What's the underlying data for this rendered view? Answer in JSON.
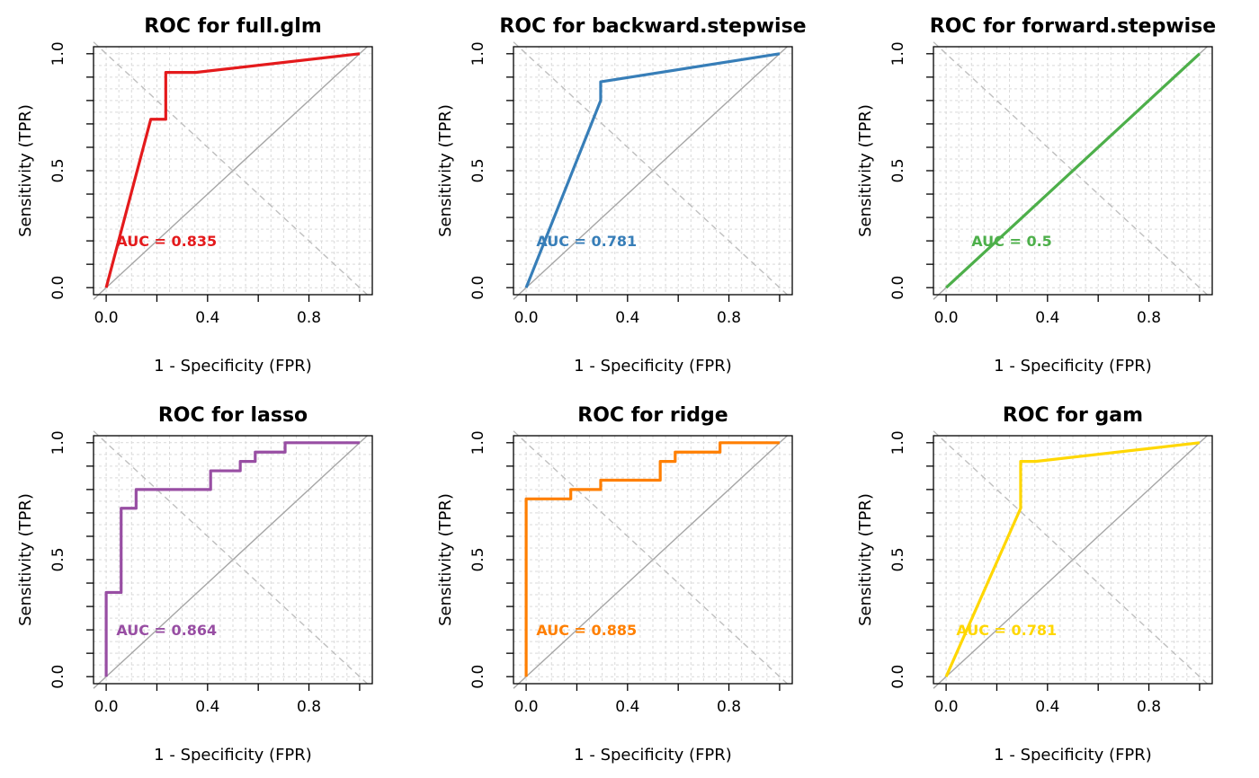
{
  "chart_data": [
    {
      "type": "line",
      "title": "ROC for full.glm",
      "xlabel": "1 - Specificity (FPR)",
      "ylabel": "Sensitivity (TPR)",
      "xlim": [
        -0.05,
        1.05
      ],
      "ylim": [
        -0.03,
        1.03
      ],
      "x_ticks": [
        "0.0",
        "0.4",
        "0.8"
      ],
      "y_ticks": [
        "0.0",
        "0.5",
        "1.0"
      ],
      "grid": true,
      "color": "#E41A1C",
      "series": [
        {
          "x": [
            0,
            0.176,
            0.235,
            0.235,
            0.353,
            1.0
          ],
          "y": [
            0,
            0.72,
            0.72,
            0.92,
            0.92,
            1.0
          ]
        }
      ],
      "annotation": {
        "text": "AUC = 0.835",
        "x": 0.04,
        "y": 0.2
      }
    },
    {
      "type": "line",
      "title": "ROC for backward.stepwise",
      "xlabel": "1 - Specificity (FPR)",
      "ylabel": "Sensitivity (TPR)",
      "xlim": [
        -0.05,
        1.05
      ],
      "ylim": [
        -0.03,
        1.03
      ],
      "x_ticks": [
        "0.0",
        "0.4",
        "0.8"
      ],
      "y_ticks": [
        "0.0",
        "0.5",
        "1.0"
      ],
      "grid": true,
      "color": "#377EB8",
      "series": [
        {
          "x": [
            0,
            0.294,
            0.294,
            1.0
          ],
          "y": [
            0,
            0.8,
            0.88,
            1.0
          ]
        }
      ],
      "annotation": {
        "text": "AUC = 0.781",
        "x": 0.04,
        "y": 0.2
      }
    },
    {
      "type": "line",
      "title": "ROC for forward.stepwise",
      "xlabel": "1 - Specificity (FPR)",
      "ylabel": "Sensitivity (TPR)",
      "xlim": [
        -0.05,
        1.05
      ],
      "ylim": [
        -0.03,
        1.03
      ],
      "x_ticks": [
        "0.0",
        "0.4",
        "0.8"
      ],
      "y_ticks": [
        "0.0",
        "0.5",
        "1.0"
      ],
      "grid": true,
      "color": "#4DAF4A",
      "series": [
        {
          "x": [
            0,
            1.0
          ],
          "y": [
            0,
            1.0
          ]
        }
      ],
      "annotation": {
        "text": "AUC = 0.5",
        "x": 0.1,
        "y": 0.2
      }
    },
    {
      "type": "line",
      "title": "ROC for lasso",
      "xlabel": "1 - Specificity (FPR)",
      "ylabel": "Sensitivity (TPR)",
      "xlim": [
        -0.05,
        1.05
      ],
      "ylim": [
        -0.03,
        1.03
      ],
      "x_ticks": [
        "0.0",
        "0.4",
        "0.8"
      ],
      "y_ticks": [
        "0.0",
        "0.5",
        "1.0"
      ],
      "grid": true,
      "color": "#984EA3",
      "series": [
        {
          "x": [
            0,
            0,
            0.059,
            0.059,
            0.118,
            0.118,
            0.412,
            0.412,
            0.529,
            0.529,
            0.588,
            0.588,
            0.706,
            0.706,
            1.0
          ],
          "y": [
            0,
            0.36,
            0.36,
            0.72,
            0.72,
            0.8,
            0.8,
            0.88,
            0.88,
            0.92,
            0.92,
            0.96,
            0.96,
            1.0,
            1.0
          ]
        }
      ],
      "annotation": {
        "text": "AUC = 0.864",
        "x": 0.04,
        "y": 0.2
      }
    },
    {
      "type": "line",
      "title": "ROC for ridge",
      "xlabel": "1 - Specificity (FPR)",
      "ylabel": "Sensitivity (TPR)",
      "xlim": [
        -0.05,
        1.05
      ],
      "ylim": [
        -0.03,
        1.03
      ],
      "x_ticks": [
        "0.0",
        "0.4",
        "0.8"
      ],
      "y_ticks": [
        "0.0",
        "0.5",
        "1.0"
      ],
      "grid": true,
      "color": "#FF7F00",
      "series": [
        {
          "x": [
            0,
            0,
            0.176,
            0.176,
            0.294,
            0.294,
            0.529,
            0.529,
            0.588,
            0.588,
            0.765,
            0.765,
            1.0
          ],
          "y": [
            0,
            0.76,
            0.76,
            0.8,
            0.8,
            0.84,
            0.84,
            0.92,
            0.92,
            0.96,
            0.96,
            1.0,
            1.0
          ]
        }
      ],
      "annotation": {
        "text": "AUC = 0.885",
        "x": 0.04,
        "y": 0.2
      }
    },
    {
      "type": "line",
      "title": "ROC for gam",
      "xlabel": "1 - Specificity (FPR)",
      "ylabel": "Sensitivity (TPR)",
      "xlim": [
        -0.05,
        1.05
      ],
      "ylim": [
        -0.03,
        1.03
      ],
      "x_ticks": [
        "0.0",
        "0.4",
        "0.8"
      ],
      "y_ticks": [
        "0.0",
        "0.5",
        "1.0"
      ],
      "grid": true,
      "color": "#FFD700",
      "series": [
        {
          "x": [
            0,
            0.294,
            0.294,
            0.353,
            1.0
          ],
          "y": [
            0,
            0.72,
            0.92,
            0.92,
            1.0
          ]
        }
      ],
      "annotation": {
        "text": "AUC = 0.781",
        "x": 0.04,
        "y": 0.2
      }
    }
  ]
}
